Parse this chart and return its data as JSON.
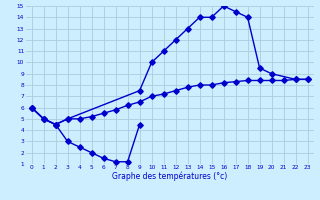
{
  "xlabel": "Graphe des températures (°c)",
  "xlim": [
    -0.5,
    23.5
  ],
  "ylim": [
    1,
    15
  ],
  "xticks": [
    0,
    1,
    2,
    3,
    4,
    5,
    6,
    7,
    8,
    9,
    10,
    11,
    12,
    13,
    14,
    15,
    16,
    17,
    18,
    19,
    20,
    21,
    22,
    23
  ],
  "yticks": [
    1,
    2,
    3,
    4,
    5,
    6,
    7,
    8,
    9,
    10,
    11,
    12,
    13,
    14,
    15
  ],
  "bg_color": "#cceeff",
  "line_color": "#0000cc",
  "grid_color": "#aaccdd",
  "line_bottom_x": [
    0,
    1,
    2,
    3,
    4,
    5,
    6,
    7,
    8,
    9
  ],
  "line_bottom_y": [
    6,
    5,
    4.5,
    3,
    2.5,
    2,
    1.5,
    1.2,
    1.2,
    4.5
  ],
  "line_upper_x": [
    0,
    1,
    2,
    3,
    9,
    10,
    11,
    12,
    13,
    14,
    15,
    16,
    17,
    18,
    19,
    20,
    22,
    23
  ],
  "line_upper_y": [
    6,
    5,
    4.5,
    5,
    7.5,
    10,
    11,
    12,
    13,
    14,
    14,
    15,
    14.5,
    14,
    9.5,
    9,
    8.5,
    8.5
  ],
  "line_diag_x": [
    0,
    1,
    2,
    3,
    4,
    5,
    6,
    7,
    8,
    9,
    10,
    11,
    12,
    13,
    14,
    15,
    16,
    17,
    18,
    19,
    20,
    21,
    22,
    23
  ],
  "line_diag_y": [
    6,
    5,
    4.5,
    5,
    5,
    5.2,
    5.5,
    5.8,
    6.2,
    6.5,
    7,
    7.2,
    7.5,
    7.8,
    8,
    8,
    8.2,
    8.3,
    8.4,
    8.4,
    8.4,
    8.4,
    8.5,
    8.5
  ]
}
